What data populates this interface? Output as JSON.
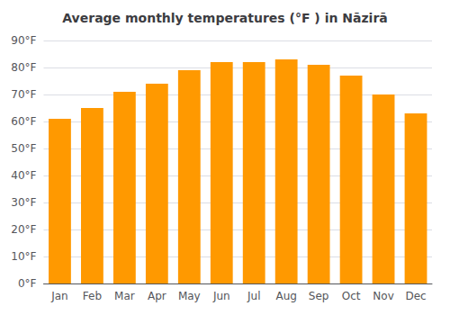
{
  "chart_data": {
    "type": "bar",
    "title": "Average monthly temperatures (°F ) in Nāzirā",
    "categories": [
      "Jan",
      "Feb",
      "Mar",
      "Apr",
      "May",
      "Jun",
      "Jul",
      "Aug",
      "Sep",
      "Oct",
      "Nov",
      "Dec"
    ],
    "values": [
      61,
      65,
      71,
      74,
      79,
      82,
      82,
      83,
      81,
      77,
      70,
      63
    ],
    "color": "#FF9900",
    "ylim": [
      0,
      90
    ],
    "yticks": [
      {
        "value": 0,
        "label": "0°F"
      },
      {
        "value": 10,
        "label": "10°F"
      },
      {
        "value": 20,
        "label": "20°F"
      },
      {
        "value": 30,
        "label": "30°F"
      },
      {
        "value": 40,
        "label": "40°F"
      },
      {
        "value": 50,
        "label": "50°F"
      },
      {
        "value": 60,
        "label": "60°F"
      },
      {
        "value": 70,
        "label": "70°F"
      },
      {
        "value": 80,
        "label": "80°F"
      },
      {
        "value": 90,
        "label": "90°F"
      }
    ],
    "grid": true
  }
}
